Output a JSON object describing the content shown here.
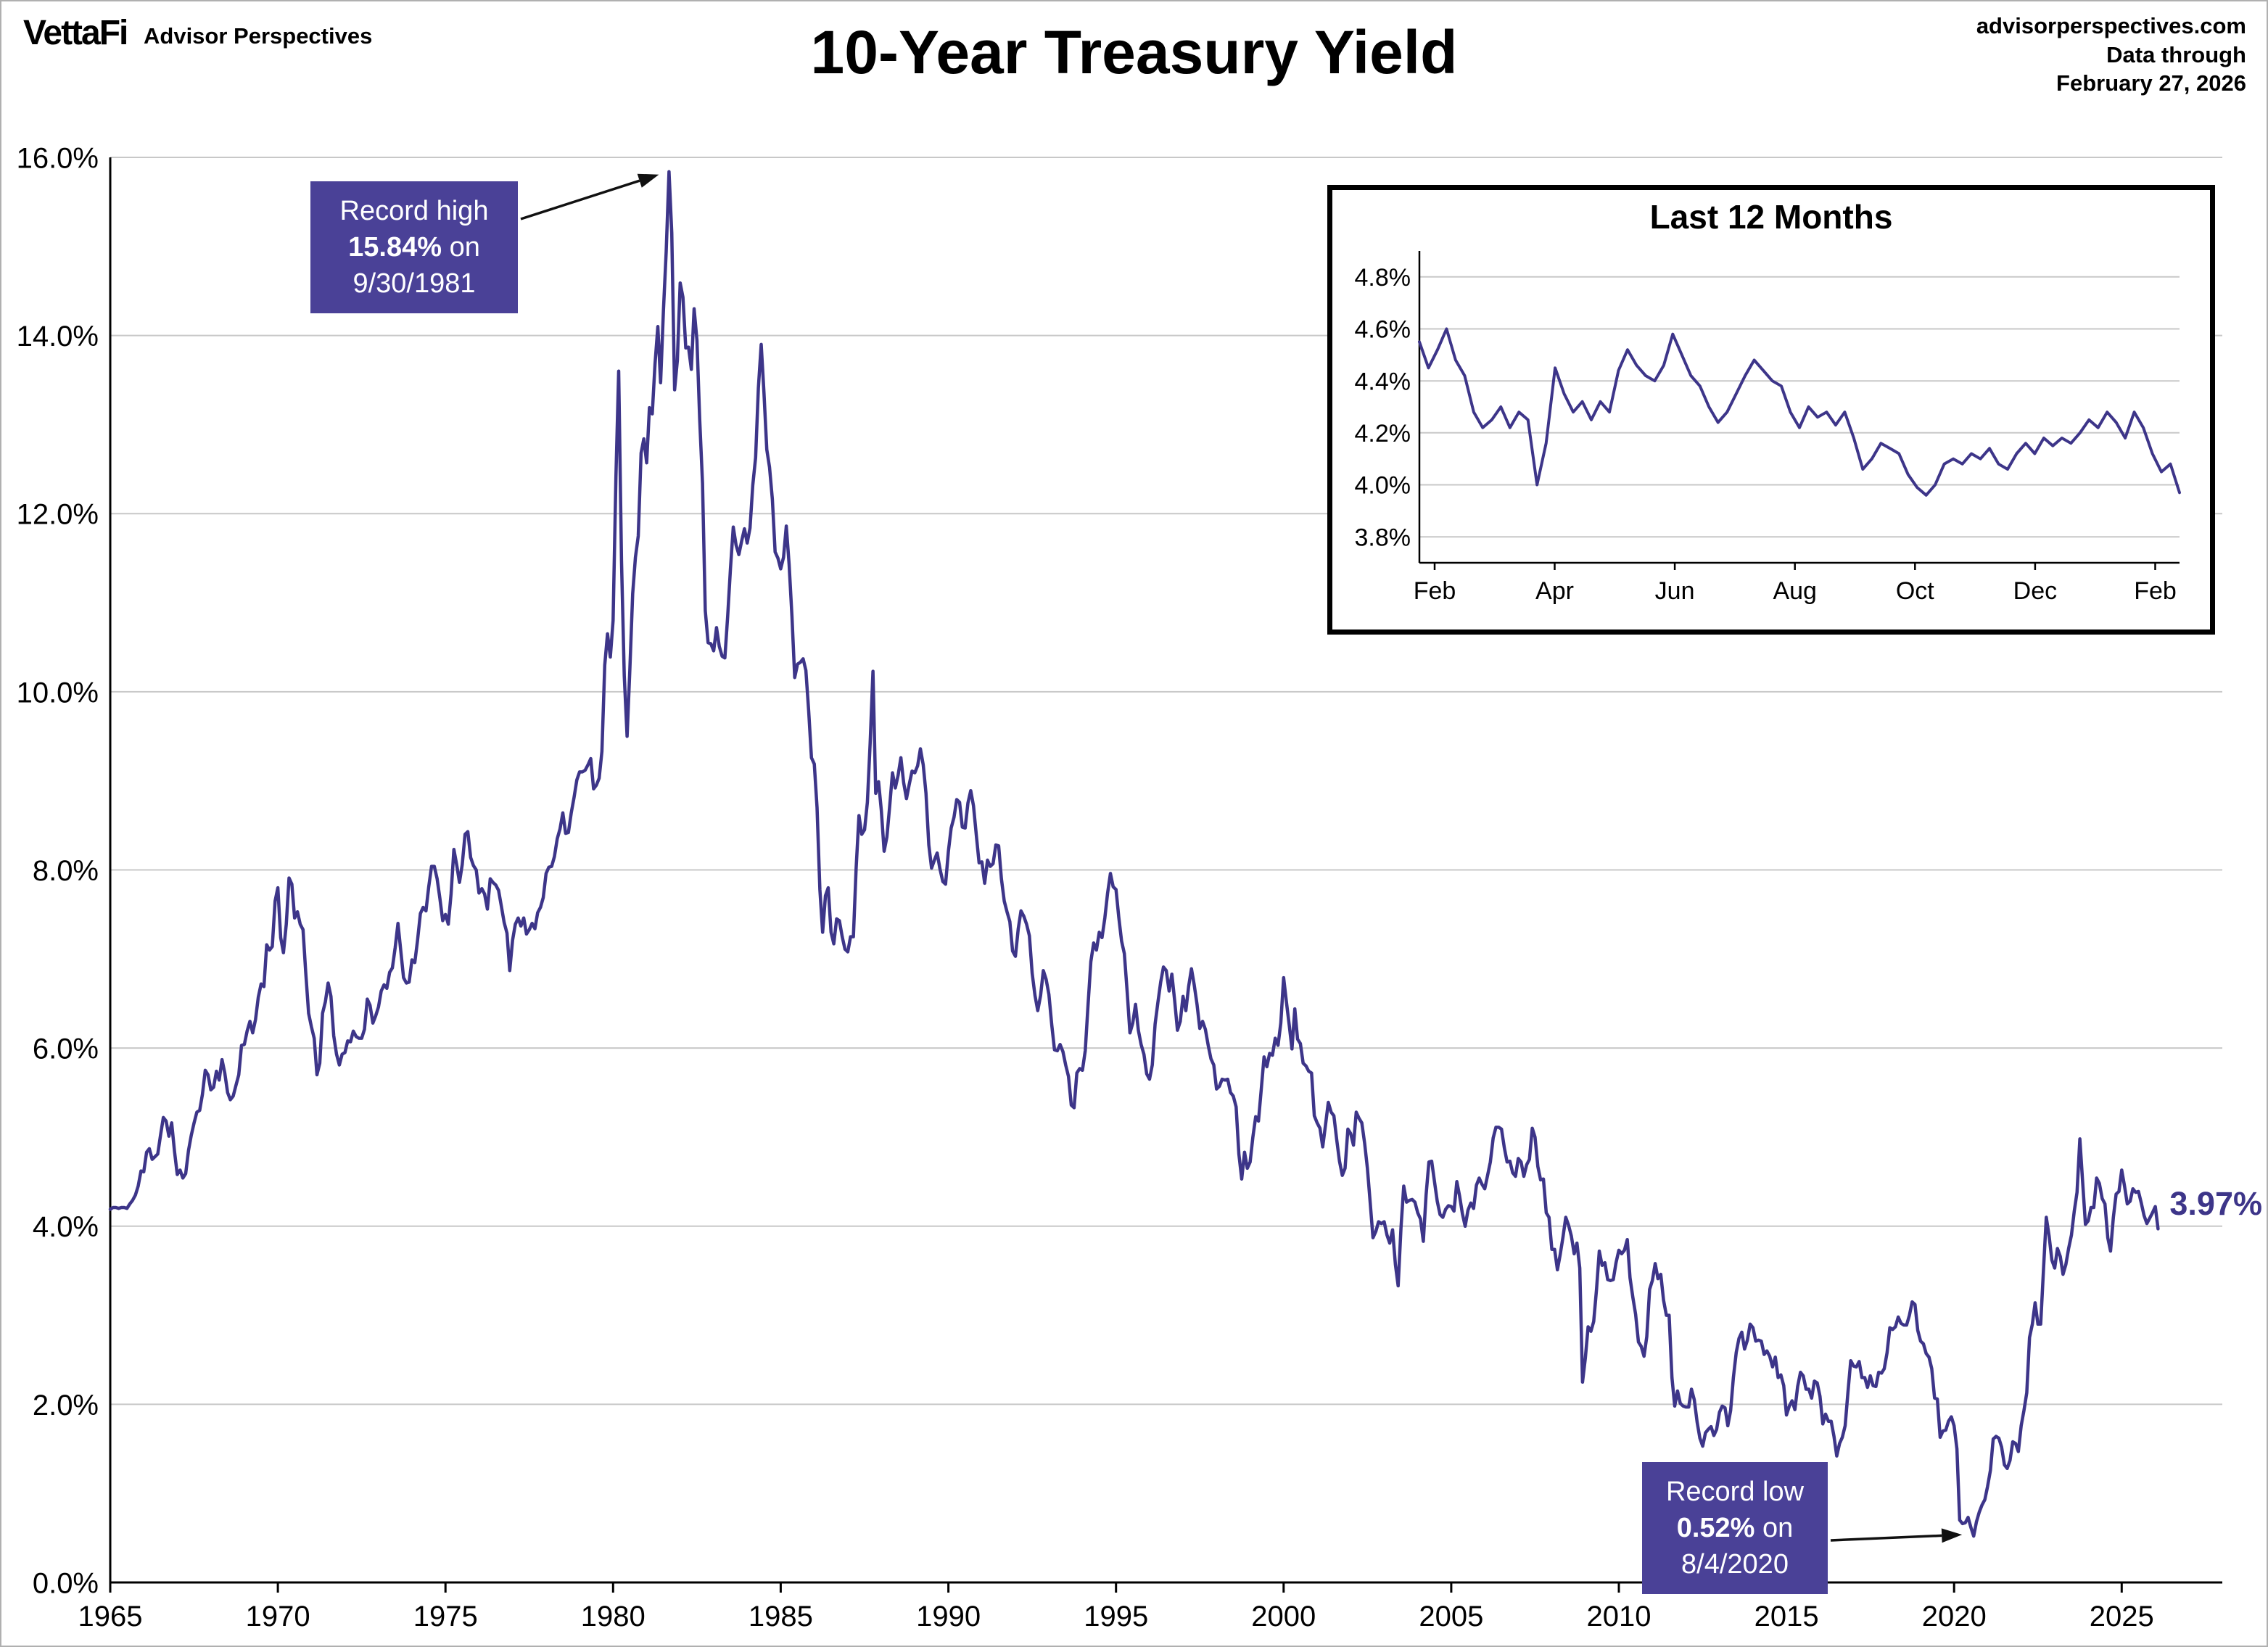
{
  "header": {
    "logo_text": "VettaFi",
    "logo_sub": "Advisor Perspectives",
    "title": "10-Year Treasury Yield",
    "source": "advisorperspectives.com",
    "data_through_label": "Data through",
    "data_through_date": "February 27, 2026"
  },
  "annotations": {
    "record_high": {
      "line1": "Record high",
      "value": "15.84%",
      "suffix": " on",
      "date": "9/30/1981"
    },
    "record_low": {
      "line1": "Record low",
      "value": "0.52%",
      "suffix": " on",
      "date": "8/4/2020"
    },
    "last_value_label": "3.97%"
  },
  "colors": {
    "line": "#3d3589",
    "annotation_bg": "#4a4197",
    "grid": "#c8c8c8"
  },
  "chart_data": [
    {
      "type": "line",
      "name": "10-year-treasury-yield-history",
      "title": "10-Year Treasury Yield",
      "x_unit": "year",
      "xlim": [
        1965,
        2028
      ],
      "ylim": [
        0,
        16
      ],
      "grid": "horizontal",
      "y_ticks": [
        {
          "v": 0,
          "label": "0.0%"
        },
        {
          "v": 2,
          "label": "2.0%"
        },
        {
          "v": 4,
          "label": "4.0%"
        },
        {
          "v": 6,
          "label": "6.0%"
        },
        {
          "v": 8,
          "label": "8.0%"
        },
        {
          "v": 10,
          "label": "10.0%"
        },
        {
          "v": 12,
          "label": "12.0%"
        },
        {
          "v": 14,
          "label": "14.0%"
        },
        {
          "v": 16,
          "label": "16.0%"
        }
      ],
      "x_ticks": [
        {
          "v": 1965,
          "label": "1965"
        },
        {
          "v": 1970,
          "label": "1970"
        },
        {
          "v": 1975,
          "label": "1975"
        },
        {
          "v": 1980,
          "label": "1980"
        },
        {
          "v": 1985,
          "label": "1985"
        },
        {
          "v": 1990,
          "label": "1990"
        },
        {
          "v": 1995,
          "label": "1995"
        },
        {
          "v": 2000,
          "label": "2000"
        },
        {
          "v": 2005,
          "label": "2005"
        },
        {
          "v": 2010,
          "label": "2010"
        },
        {
          "v": 2015,
          "label": "2015"
        },
        {
          "v": 2020,
          "label": "2020"
        },
        {
          "v": 2025,
          "label": "2025"
        }
      ],
      "record_high": {
        "value": 15.84,
        "date": "9/30/1981"
      },
      "record_low": {
        "value": 0.52,
        "date": "8/4/2020"
      },
      "last_value": 3.97,
      "monthly_by_year": {
        "1965": [
          4.19,
          4.21,
          4.21,
          4.2,
          4.21,
          4.21,
          4.2,
          4.25,
          4.29,
          4.35,
          4.45,
          4.62
        ],
        "1966": [
          4.61,
          4.83,
          4.87,
          4.75,
          4.78,
          4.81,
          5.02,
          5.22,
          5.18,
          5.01,
          5.16,
          4.84
        ],
        "1967": [
          4.58,
          4.63,
          4.54,
          4.59,
          4.85,
          5.02,
          5.16,
          5.28,
          5.3,
          5.48,
          5.75,
          5.7
        ],
        "1968": [
          5.53,
          5.56,
          5.74,
          5.64,
          5.87,
          5.72,
          5.5,
          5.42,
          5.46,
          5.58,
          5.7,
          6.03
        ],
        "1969": [
          6.04,
          6.19,
          6.3,
          6.17,
          6.32,
          6.57,
          6.72,
          6.69,
          7.16,
          7.1,
          7.14,
          7.65
        ],
        "1970": [
          7.8,
          7.24,
          7.07,
          7.39,
          7.91,
          7.84,
          7.46,
          7.53,
          7.39,
          7.33,
          6.84,
          6.39
        ],
        "1971": [
          6.24,
          6.11,
          5.7,
          5.83,
          6.39,
          6.52,
          6.73,
          6.58,
          6.14,
          5.93,
          5.81,
          5.93
        ],
        "1972": [
          5.95,
          6.08,
          6.07,
          6.19,
          6.13,
          6.11,
          6.11,
          6.21,
          6.55,
          6.48,
          6.28,
          6.36
        ],
        "1973": [
          6.46,
          6.64,
          6.71,
          6.67,
          6.85,
          6.9,
          7.13,
          7.4,
          7.09,
          6.79,
          6.73,
          6.74
        ],
        "1974": [
          6.99,
          6.96,
          7.21,
          7.51,
          7.58,
          7.54,
          7.81,
          8.04,
          8.04,
          7.9,
          7.68,
          7.43
        ],
        "1975": [
          7.5,
          7.39,
          7.73,
          8.23,
          8.06,
          7.86,
          8.06,
          8.4,
          8.43,
          8.14,
          8.05,
          8.0
        ],
        "1976": [
          7.74,
          7.79,
          7.73,
          7.56,
          7.9,
          7.86,
          7.83,
          7.77,
          7.59,
          7.41,
          7.29,
          6.87
        ],
        "1977": [
          7.21,
          7.39,
          7.46,
          7.37,
          7.46,
          7.28,
          7.33,
          7.4,
          7.34,
          7.52,
          7.58,
          7.69
        ],
        "1978": [
          7.96,
          8.03,
          8.04,
          8.15,
          8.35,
          8.46,
          8.64,
          8.41,
          8.42,
          8.64,
          8.81,
          9.01
        ],
        "1979": [
          9.1,
          9.1,
          9.12,
          9.18,
          9.25,
          8.91,
          8.95,
          9.03,
          9.33,
          10.3,
          10.65,
          10.39
        ],
        "1980": [
          10.8,
          12.41,
          13.6,
          11.47,
          10.18,
          9.5,
          10.25,
          11.1,
          11.51,
          11.75,
          12.68,
          12.84
        ],
        "1981": [
          12.57,
          13.19,
          13.12,
          13.68,
          14.1,
          13.47,
          14.28,
          14.94,
          15.84,
          15.15,
          13.39,
          13.72
        ],
        "1982": [
          14.59,
          14.43,
          13.86,
          13.87,
          13.62,
          14.3,
          13.95,
          13.06,
          12.34,
          10.91,
          10.55,
          10.54
        ],
        "1983": [
          10.46,
          10.72,
          10.51,
          10.4,
          10.38,
          10.85,
          11.38,
          11.85,
          11.65,
          11.54,
          11.69,
          11.83
        ],
        "1984": [
          11.67,
          11.84,
          12.32,
          12.63,
          13.41,
          13.9,
          13.36,
          12.72,
          12.52,
          12.16,
          11.57,
          11.5
        ],
        "1985": [
          11.38,
          11.51,
          11.86,
          11.43,
          10.85,
          10.16,
          10.31,
          10.33,
          10.37,
          10.24,
          9.78,
          9.26
        ],
        "1986": [
          9.19,
          8.7,
          7.78,
          7.3,
          7.71,
          7.8,
          7.3,
          7.17,
          7.45,
          7.43,
          7.25,
          7.11
        ],
        "1987": [
          7.08,
          7.25,
          7.25,
          8.02,
          8.61,
          8.4,
          8.45,
          8.76,
          9.42,
          10.23,
          8.86,
          8.99
        ],
        "1988": [
          8.67,
          8.21,
          8.37,
          8.72,
          9.09,
          8.92,
          9.06,
          9.26,
          8.98,
          8.8,
          8.96,
          9.11
        ],
        "1989": [
          9.09,
          9.17,
          9.36,
          9.18,
          8.86,
          8.28,
          8.02,
          8.11,
          8.19,
          8.01,
          7.87,
          7.84
        ],
        "1990": [
          8.21,
          8.47,
          8.59,
          8.79,
          8.76,
          8.48,
          8.47,
          8.75,
          8.89,
          8.72,
          8.39,
          8.08
        ],
        "1991": [
          8.09,
          7.85,
          8.11,
          8.04,
          8.07,
          8.28,
          8.27,
          7.9,
          7.65,
          7.53,
          7.42,
          7.09
        ],
        "1992": [
          7.03,
          7.34,
          7.54,
          7.48,
          7.39,
          7.26,
          6.84,
          6.59,
          6.42,
          6.59,
          6.87,
          6.77
        ],
        "1993": [
          6.6,
          6.26,
          5.98,
          5.97,
          6.04,
          5.96,
          5.81,
          5.68,
          5.36,
          5.33,
          5.72,
          5.77
        ],
        "1994": [
          5.75,
          5.97,
          6.48,
          6.97,
          7.18,
          7.1,
          7.3,
          7.24,
          7.46,
          7.74,
          7.96,
          7.81
        ],
        "1995": [
          7.78,
          7.47,
          7.2,
          7.06,
          6.63,
          6.17,
          6.28,
          6.49,
          6.2,
          6.04,
          5.93,
          5.71
        ],
        "1996": [
          5.65,
          5.81,
          6.27,
          6.51,
          6.74,
          6.91,
          6.87,
          6.64,
          6.83,
          6.53,
          6.2,
          6.3
        ],
        "1997": [
          6.58,
          6.42,
          6.69,
          6.89,
          6.71,
          6.49,
          6.22,
          6.3,
          6.21,
          6.03,
          5.88,
          5.81
        ],
        "1998": [
          5.54,
          5.57,
          5.65,
          5.64,
          5.65,
          5.5,
          5.46,
          5.34,
          4.81,
          4.53,
          4.83,
          4.65
        ],
        "1999": [
          4.72,
          5.0,
          5.23,
          5.18,
          5.54,
          5.9,
          5.79,
          5.94,
          5.92,
          6.11,
          6.03,
          6.28
        ],
        "2000": [
          6.79,
          6.52,
          6.26,
          5.99,
          6.44,
          6.1,
          6.05,
          5.83,
          5.8,
          5.74,
          5.72,
          5.24
        ],
        "2001": [
          5.16,
          5.1,
          4.89,
          5.14,
          5.39,
          5.28,
          5.24,
          4.97,
          4.73,
          4.57,
          4.65,
          5.09
        ],
        "2002": [
          5.04,
          4.91,
          5.28,
          5.21,
          5.16,
          4.93,
          4.65,
          4.26,
          3.87,
          3.94,
          4.05,
          4.03
        ],
        "2003": [
          4.05,
          3.9,
          3.81,
          3.96,
          3.57,
          3.33,
          3.98,
          4.45,
          4.27,
          4.29,
          4.3,
          4.27
        ],
        "2004": [
          4.15,
          4.08,
          3.83,
          4.35,
          4.72,
          4.73,
          4.5,
          4.28,
          4.13,
          4.1,
          4.19,
          4.23
        ],
        "2005": [
          4.22,
          4.17,
          4.5,
          4.34,
          4.14,
          4.0,
          4.18,
          4.26,
          4.2,
          4.46,
          4.54,
          4.47
        ],
        "2006": [
          4.42,
          4.57,
          4.72,
          4.99,
          5.11,
          5.11,
          5.09,
          4.88,
          4.72,
          4.73,
          4.6,
          4.56
        ],
        "2007": [
          4.76,
          4.72,
          4.56,
          4.69,
          4.75,
          5.1,
          5.0,
          4.67,
          4.52,
          4.53,
          4.15,
          4.1
        ],
        "2008": [
          3.74,
          3.74,
          3.51,
          3.68,
          3.88,
          4.1,
          4.01,
          3.89,
          3.69,
          3.81,
          3.53,
          2.25
        ],
        "2009": [
          2.52,
          2.87,
          2.82,
          2.93,
          3.29,
          3.72,
          3.56,
          3.59,
          3.4,
          3.39,
          3.4,
          3.59
        ],
        "2010": [
          3.73,
          3.69,
          3.73,
          3.85,
          3.42,
          3.2,
          3.01,
          2.7,
          2.65,
          2.54,
          2.76,
          3.29
        ],
        "2011": [
          3.39,
          3.58,
          3.41,
          3.46,
          3.17,
          3.0,
          3.0,
          2.3,
          1.98,
          2.15,
          2.01,
          1.98
        ],
        "2012": [
          1.97,
          1.97,
          2.17,
          2.05,
          1.8,
          1.62,
          1.53,
          1.68,
          1.72,
          1.75,
          1.65,
          1.72
        ],
        "2013": [
          1.91,
          1.98,
          1.96,
          1.76,
          1.93,
          2.3,
          2.58,
          2.74,
          2.81,
          2.62,
          2.72,
          2.9
        ],
        "2014": [
          2.86,
          2.71,
          2.72,
          2.71,
          2.56,
          2.6,
          2.54,
          2.42,
          2.53,
          2.3,
          2.33,
          2.21
        ],
        "2015": [
          1.88,
          1.98,
          2.04,
          1.94,
          2.2,
          2.36,
          2.32,
          2.17,
          2.17,
          2.07,
          2.26,
          2.24
        ],
        "2016": [
          2.09,
          1.78,
          1.89,
          1.81,
          1.81,
          1.64,
          1.42,
          1.56,
          1.63,
          1.76,
          2.14,
          2.49
        ],
        "2017": [
          2.43,
          2.42,
          2.48,
          2.3,
          2.3,
          2.19,
          2.32,
          2.21,
          2.2,
          2.36,
          2.35,
          2.4
        ],
        "2018": [
          2.58,
          2.86,
          2.84,
          2.87,
          2.98,
          2.91,
          2.89,
          2.89,
          3.0,
          3.15,
          3.12,
          2.83
        ],
        "2019": [
          2.71,
          2.68,
          2.57,
          2.53,
          2.4,
          2.07,
          2.06,
          1.63,
          1.7,
          1.71,
          1.81,
          1.86
        ],
        "2020": [
          1.76,
          1.5,
          0.7,
          0.66,
          0.67,
          0.73,
          0.62,
          0.52,
          0.68,
          0.79,
          0.87,
          0.93
        ],
        "2021": [
          1.08,
          1.26,
          1.61,
          1.64,
          1.62,
          1.52,
          1.32,
          1.28,
          1.37,
          1.58,
          1.56,
          1.47
        ],
        "2022": [
          1.76,
          1.93,
          2.13,
          2.75,
          2.9,
          3.14,
          2.9,
          2.9,
          3.52,
          4.1,
          3.89,
          3.62
        ],
        "2023": [
          3.53,
          3.75,
          3.66,
          3.46,
          3.57,
          3.75,
          3.9,
          4.17,
          4.38,
          4.98,
          4.5,
          4.02
        ],
        "2024": [
          4.06,
          4.21,
          4.21,
          4.54,
          4.48,
          4.31,
          4.25,
          3.87,
          3.72,
          4.1,
          4.36,
          4.39
        ],
        "2025": [
          4.63,
          4.45,
          4.25,
          4.28,
          4.42,
          4.38,
          4.39,
          4.26,
          4.12,
          4.03,
          4.09,
          4.15
        ],
        "2026": [
          4.22,
          3.97
        ]
      }
    },
    {
      "type": "line",
      "name": "last-12-months-inset",
      "title": "Last 12 Months",
      "ylim": [
        3.7,
        4.9
      ],
      "grid": "horizontal",
      "y_ticks": [
        {
          "v": 3.8,
          "label": "3.8%"
        },
        {
          "v": 4.0,
          "label": "4.0%"
        },
        {
          "v": 4.2,
          "label": "4.2%"
        },
        {
          "v": 4.4,
          "label": "4.4%"
        },
        {
          "v": 4.6,
          "label": "4.6%"
        },
        {
          "v": 4.8,
          "label": "4.8%"
        }
      ],
      "x_ticks": [
        {
          "v": 0.02,
          "label": "Feb"
        },
        {
          "v": 0.178,
          "label": "Apr"
        },
        {
          "v": 0.336,
          "label": "Jun"
        },
        {
          "v": 0.494,
          "label": "Aug"
        },
        {
          "v": 0.652,
          "label": "Oct"
        },
        {
          "v": 0.81,
          "label": "Dec"
        },
        {
          "v": 0.968,
          "label": "Feb"
        }
      ],
      "values": [
        4.55,
        4.45,
        4.52,
        4.6,
        4.48,
        4.42,
        4.28,
        4.22,
        4.25,
        4.3,
        4.22,
        4.28,
        4.25,
        4.0,
        4.16,
        4.45,
        4.35,
        4.28,
        4.32,
        4.25,
        4.32,
        4.28,
        4.44,
        4.52,
        4.46,
        4.42,
        4.4,
        4.46,
        4.58,
        4.5,
        4.42,
        4.38,
        4.3,
        4.24,
        4.28,
        4.35,
        4.42,
        4.48,
        4.44,
        4.4,
        4.38,
        4.28,
        4.22,
        4.3,
        4.26,
        4.28,
        4.23,
        4.28,
        4.18,
        4.06,
        4.1,
        4.16,
        4.14,
        4.12,
        4.04,
        3.99,
        3.96,
        4.0,
        4.08,
        4.1,
        4.08,
        4.12,
        4.1,
        4.14,
        4.08,
        4.06,
        4.12,
        4.16,
        4.12,
        4.18,
        4.15,
        4.18,
        4.16,
        4.2,
        4.25,
        4.22,
        4.28,
        4.24,
        4.18,
        4.28,
        4.22,
        4.12,
        4.05,
        4.08,
        3.97
      ]
    }
  ]
}
